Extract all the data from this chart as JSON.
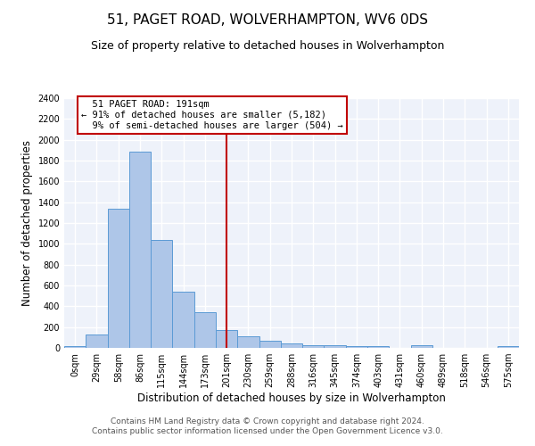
{
  "title": "51, PAGET ROAD, WOLVERHAMPTON, WV6 0DS",
  "subtitle": "Size of property relative to detached houses in Wolverhampton",
  "xlabel": "Distribution of detached houses by size in Wolverhampton",
  "ylabel": "Number of detached properties",
  "footer_line1": "Contains HM Land Registry data © Crown copyright and database right 2024.",
  "footer_line2": "Contains public sector information licensed under the Open Government Licence v3.0.",
  "categories": [
    "0sqm",
    "29sqm",
    "58sqm",
    "86sqm",
    "115sqm",
    "144sqm",
    "173sqm",
    "201sqm",
    "230sqm",
    "259sqm",
    "288sqm",
    "316sqm",
    "345sqm",
    "374sqm",
    "403sqm",
    "431sqm",
    "460sqm",
    "489sqm",
    "518sqm",
    "546sqm",
    "575sqm"
  ],
  "values": [
    15,
    125,
    1340,
    1890,
    1040,
    540,
    340,
    170,
    110,
    65,
    45,
    30,
    25,
    20,
    15,
    0,
    25,
    0,
    0,
    0,
    15
  ],
  "bar_color": "#aec6e8",
  "bar_edge_color": "#5b9bd5",
  "vline_x_index": 7.0,
  "vline_color": "#c00000",
  "annotation_text": "  51 PAGET ROAD: 191sqm\n← 91% of detached houses are smaller (5,182)\n  9% of semi-detached houses are larger (504) →",
  "annotation_box_color": "#c00000",
  "annotation_text_color": "#000000",
  "ylim": [
    0,
    2400
  ],
  "yticks": [
    0,
    200,
    400,
    600,
    800,
    1000,
    1200,
    1400,
    1600,
    1800,
    2000,
    2200,
    2400
  ],
  "background_color": "#eef2fa",
  "grid_color": "#ffffff",
  "title_fontsize": 11,
  "subtitle_fontsize": 9,
  "label_fontsize": 8.5,
  "tick_fontsize": 7,
  "footer_fontsize": 6.5,
  "annotation_fontsize": 7.5
}
